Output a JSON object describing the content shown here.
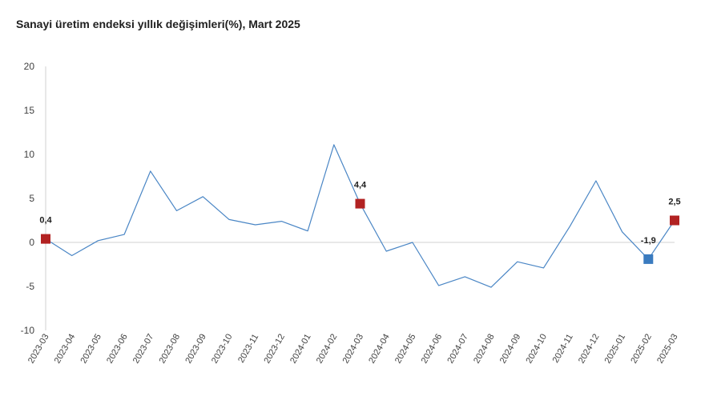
{
  "chart_data": {
    "type": "line",
    "title": "Sanayi üretim endeksi yıllık değişimleri(%), Mart 2025",
    "xlabel": "",
    "ylabel": "",
    "ylim": [
      -10,
      20
    ],
    "yticks": [
      -10,
      -5,
      0,
      5,
      10,
      15,
      20
    ],
    "grid": false,
    "legend": "none",
    "x": [
      "2023-03",
      "2023-04",
      "2023-05",
      "2023-06",
      "2023-07",
      "2023-08",
      "2023-09",
      "2023-10",
      "2023-11",
      "2023-12",
      "2024-01",
      "2024-02",
      "2024-03",
      "2024-04",
      "2024-05",
      "2024-06",
      "2024-07",
      "2024-08",
      "2024-09",
      "2024-10",
      "2024-11",
      "2024-12",
      "2025-01",
      "2025-02",
      "2025-03"
    ],
    "series": [
      {
        "values": [
          0.4,
          -1.5,
          0.2,
          0.9,
          8.1,
          3.6,
          5.2,
          2.6,
          2.0,
          2.4,
          1.3,
          11.1,
          4.4,
          -1.0,
          0.0,
          -4.9,
          -3.9,
          -5.1,
          -2.2,
          -2.9,
          1.8,
          7.0,
          1.2,
          -1.9,
          2.5
        ],
        "color": "#4a86c5"
      }
    ],
    "highlights": [
      {
        "index": 0,
        "label": "0,4",
        "color": "#b22222"
      },
      {
        "index": 12,
        "label": "4,4",
        "color": "#b22222"
      },
      {
        "index": 23,
        "label": "-1,9",
        "color": "#3a7bbf"
      },
      {
        "index": 24,
        "label": "2,5",
        "color": "#b22222"
      }
    ]
  }
}
